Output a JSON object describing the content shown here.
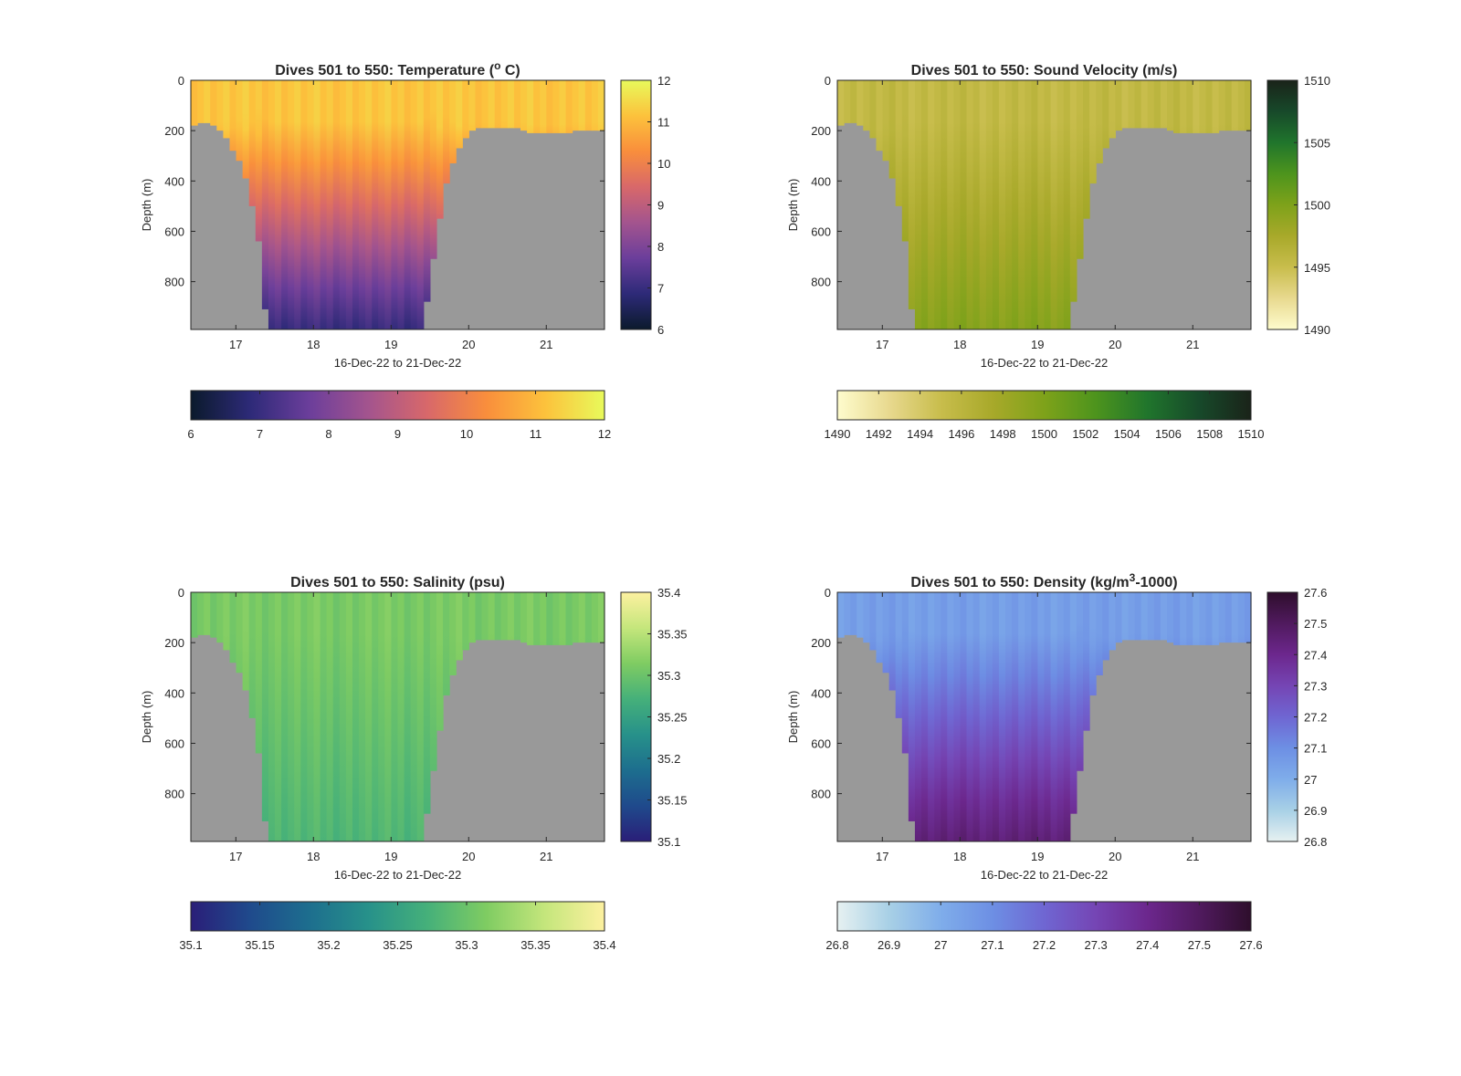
{
  "chart_data": [
    {
      "type": "heatmap",
      "title": "Dives 501 to 550: Temperature (",
      "title_unit": "o",
      "title_tail": " C)",
      "xlabel": "16-Dec-22 to 21-Dec-22",
      "ylabel": "Depth (m)",
      "xlim": [
        16.42,
        21.75
      ],
      "ylim": [
        0,
        990
      ],
      "y_reversed": true,
      "xticks": [
        17,
        18,
        19,
        20,
        21
      ],
      "xtick_labels": [
        "17",
        "18",
        "19",
        "20",
        "21"
      ],
      "yticks": [
        0,
        200,
        400,
        600,
        800
      ],
      "ytick_labels": [
        "0",
        "200",
        "400",
        "600",
        "800"
      ],
      "clim": [
        6,
        12
      ],
      "colormap": [
        "#0b1a2c",
        "#2d2a78",
        "#6b3e9b",
        "#a3548e",
        "#d8686a",
        "#f98e3c",
        "#fcc23c",
        "#e8fa5b"
      ],
      "vertical_colorbar": {
        "ticks": [
          "6",
          "7",
          "8",
          "9",
          "10",
          "11",
          "12"
        ],
        "values": [
          6,
          7,
          8,
          9,
          10,
          11,
          12
        ]
      },
      "horizontal_colorbar": {
        "ticks": [
          "6",
          "7",
          "8",
          "9",
          "10",
          "11",
          "12"
        ],
        "values": [
          6,
          7,
          8,
          9,
          10,
          11,
          12
        ]
      },
      "surface_value": 11.2,
      "deep_value": 7.0,
      "seafloor_color": "#999999"
    },
    {
      "type": "heatmap",
      "title": "Dives 501 to 550: Sound Velocity (m/s)",
      "title_unit": "",
      "title_tail": "",
      "xlabel": "16-Dec-22 to 21-Dec-22",
      "ylabel": "Depth (m)",
      "xlim": [
        16.42,
        21.75
      ],
      "ylim": [
        0,
        990
      ],
      "y_reversed": true,
      "xticks": [
        17,
        18,
        19,
        20,
        21
      ],
      "xtick_labels": [
        "17",
        "18",
        "19",
        "20",
        "21"
      ],
      "yticks": [
        0,
        200,
        400,
        600,
        800
      ],
      "ytick_labels": [
        "0",
        "200",
        "400",
        "600",
        "800"
      ],
      "clim": [
        1490,
        1510
      ],
      "colormap": [
        "#fefccd",
        "#e8d98f",
        "#c8bd4c",
        "#a8a92a",
        "#7ea21a",
        "#4d941d",
        "#20752c",
        "#17492a",
        "#1a2319"
      ],
      "vertical_colorbar": {
        "ticks": [
          "1490",
          "1495",
          "1500",
          "1505",
          "1510"
        ],
        "values": [
          1490,
          1495,
          1500,
          1505,
          1510
        ]
      },
      "horizontal_colorbar": {
        "ticks": [
          "1490",
          "1492",
          "1494",
          "1496",
          "1498",
          "1500",
          "1502",
          "1504",
          "1506",
          "1508",
          "1510"
        ],
        "values": [
          1490,
          1492,
          1494,
          1496,
          1498,
          1500,
          1502,
          1504,
          1506,
          1508,
          1510
        ]
      },
      "surface_value": 1495.5,
      "deep_value": 1499.5,
      "seafloor_color": "#999999"
    },
    {
      "type": "heatmap",
      "title": "Dives 501 to 550: Salinity (psu)",
      "title_unit": "",
      "title_tail": "",
      "xlabel": "16-Dec-22 to 21-Dec-22",
      "ylabel": "Depth (m)",
      "xlim": [
        16.42,
        21.75
      ],
      "ylim": [
        0,
        990
      ],
      "y_reversed": true,
      "xticks": [
        17,
        18,
        19,
        20,
        21
      ],
      "xtick_labels": [
        "17",
        "18",
        "19",
        "20",
        "21"
      ],
      "yticks": [
        0,
        200,
        400,
        600,
        800
      ],
      "ytick_labels": [
        "0",
        "200",
        "400",
        "600",
        "800"
      ],
      "clim": [
        35.1,
        35.4
      ],
      "colormap": [
        "#2a1e78",
        "#1f4a8c",
        "#1d6e8e",
        "#27918a",
        "#45b07a",
        "#7fcc62",
        "#c5e67c",
        "#fdf1a0"
      ],
      "vertical_colorbar": {
        "ticks": [
          "35.1",
          "35.15",
          "35.2",
          "35.25",
          "35.3",
          "35.35",
          "35.4"
        ],
        "values": [
          35.1,
          35.15,
          35.2,
          35.25,
          35.3,
          35.35,
          35.4
        ]
      },
      "horizontal_colorbar": {
        "ticks": [
          "35.1",
          "35.15",
          "35.2",
          "35.25",
          "35.3",
          "35.35",
          "35.4"
        ],
        "values": [
          35.1,
          35.15,
          35.2,
          35.25,
          35.3,
          35.35,
          35.4
        ]
      },
      "surface_value": 35.31,
      "deep_value": 35.28,
      "seafloor_color": "#999999"
    },
    {
      "type": "heatmap",
      "title": "Dives 501 to 550: Density (kg/m",
      "title_unit": "3",
      "title_tail": "-1000)",
      "xlabel": "16-Dec-22 to 21-Dec-22",
      "ylabel": "Depth (m)",
      "xlim": [
        16.42,
        21.75
      ],
      "ylim": [
        0,
        990
      ],
      "y_reversed": true,
      "xticks": [
        17,
        18,
        19,
        20,
        21
      ],
      "xtick_labels": [
        "17",
        "18",
        "19",
        "20",
        "21"
      ],
      "yticks": [
        0,
        200,
        400,
        600,
        800
      ],
      "ytick_labels": [
        "0",
        "200",
        "400",
        "600",
        "800"
      ],
      "clim": [
        26.8,
        27.6
      ],
      "colormap": [
        "#e6f1f1",
        "#a8d0e6",
        "#7fadea",
        "#6d8fe4",
        "#6f66d2",
        "#7545b4",
        "#6c278d",
        "#501a5e",
        "#2e0e2c"
      ],
      "vertical_colorbar": {
        "ticks": [
          "26.8",
          "26.9",
          "27",
          "27.1",
          "27.2",
          "27.3",
          "27.4",
          "27.5",
          "27.6"
        ],
        "values": [
          26.8,
          26.9,
          27.0,
          27.1,
          27.2,
          27.3,
          27.4,
          27.5,
          27.6
        ]
      },
      "horizontal_colorbar": {
        "ticks": [
          "26.8",
          "26.9",
          "27",
          "27.1",
          "27.2",
          "27.3",
          "27.4",
          "27.5",
          "27.6"
        ],
        "values": [
          26.8,
          26.9,
          27.0,
          27.1,
          27.2,
          27.3,
          27.4,
          27.5,
          27.6
        ]
      },
      "surface_value": 27.05,
      "deep_value": 27.45,
      "seafloor_color": "#999999"
    }
  ],
  "dive_depth_profile": {
    "x": [
      16.42,
      16.5,
      16.6,
      16.7,
      16.8,
      16.9,
      17.0,
      17.1,
      17.2,
      17.3,
      17.4,
      17.5,
      17.6,
      17.7,
      17.8,
      17.9,
      18.0,
      18.1,
      18.2,
      18.3,
      18.4,
      18.5,
      18.6,
      18.7,
      18.8,
      18.9,
      19.0,
      19.1,
      19.2,
      19.3,
      19.4,
      19.5,
      19.6,
      19.7,
      19.8,
      19.9,
      20.0,
      20.1,
      20.2,
      20.3,
      20.4,
      20.5,
      20.6,
      20.7,
      20.8,
      20.9,
      21.0,
      21.1,
      21.2,
      21.3,
      21.4,
      21.5,
      21.6,
      21.75
    ],
    "max_depth": [
      180,
      175,
      165,
      180,
      200,
      240,
      300,
      350,
      480,
      650,
      990,
      990,
      990,
      990,
      990,
      990,
      990,
      990,
      990,
      990,
      990,
      990,
      990,
      990,
      990,
      990,
      990,
      990,
      990,
      990,
      990,
      800,
      600,
      420,
      320,
      260,
      210,
      195,
      190,
      195,
      185,
      190,
      185,
      200,
      210,
      215,
      210,
      205,
      210,
      205,
      200,
      205,
      200,
      205
    ]
  }
}
